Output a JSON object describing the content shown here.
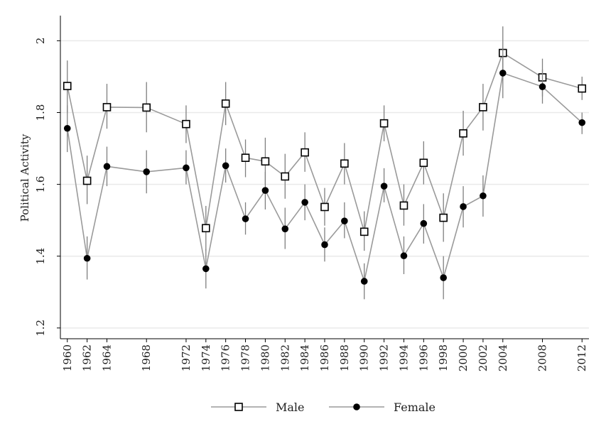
{
  "chart_data": {
    "type": "line",
    "title": "",
    "xlabel": "",
    "ylabel": "Political Activity",
    "ylim": [
      1.17,
      2.07
    ],
    "xlim": [
      1959.3,
      2012.7
    ],
    "yticks": [
      1.2,
      1.4,
      1.6,
      1.8,
      2.0
    ],
    "ytick_labels": [
      "1.2",
      "1.4",
      "1.6",
      "1.8",
      "2"
    ],
    "x": [
      1960,
      1962,
      1964,
      1968,
      1972,
      1974,
      1976,
      1978,
      1980,
      1982,
      1984,
      1986,
      1988,
      1990,
      1992,
      1994,
      1996,
      1998,
      2000,
      2002,
      2004,
      2008,
      2012
    ],
    "xtick_labels": [
      "1960",
      "1962",
      "1964",
      "1968",
      "1972",
      "1974",
      "1976",
      "1978",
      "1980",
      "1982",
      "1984",
      "1986",
      "1988",
      "1990",
      "1992",
      "1994",
      "1996",
      "1998",
      "2000",
      "2002",
      "2004",
      "2008",
      "2012"
    ],
    "grid": true,
    "legend_position": "bottom",
    "series": [
      {
        "name": "Male",
        "marker": "hollow-square",
        "values": [
          1.874,
          1.61,
          1.815,
          1.814,
          1.768,
          1.478,
          1.825,
          1.674,
          1.664,
          1.622,
          1.689,
          1.537,
          1.658,
          1.468,
          1.77,
          1.541,
          1.66,
          1.507,
          1.742,
          1.815,
          1.966,
          1.898,
          1.867
        ],
        "lower": [
          1.8,
          1.545,
          1.755,
          1.745,
          1.715,
          1.415,
          1.765,
          1.62,
          1.6,
          1.56,
          1.635,
          1.485,
          1.6,
          1.415,
          1.72,
          1.485,
          1.6,
          1.44,
          1.68,
          1.75,
          1.89,
          1.845,
          1.835
        ],
        "upper": [
          1.945,
          1.68,
          1.88,
          1.885,
          1.82,
          1.54,
          1.885,
          1.725,
          1.73,
          1.685,
          1.745,
          1.59,
          1.715,
          1.525,
          1.82,
          1.6,
          1.72,
          1.575,
          1.805,
          1.88,
          2.04,
          1.95,
          1.9
        ]
      },
      {
        "name": "Female",
        "marker": "filled-circle",
        "values": [
          1.756,
          1.394,
          1.65,
          1.635,
          1.646,
          1.365,
          1.652,
          1.504,
          1.583,
          1.476,
          1.55,
          1.432,
          1.498,
          1.33,
          1.595,
          1.401,
          1.491,
          1.34,
          1.538,
          1.568,
          1.91,
          1.872,
          1.772
        ],
        "lower": [
          1.69,
          1.335,
          1.595,
          1.575,
          1.6,
          1.31,
          1.605,
          1.46,
          1.53,
          1.42,
          1.5,
          1.385,
          1.45,
          1.28,
          1.55,
          1.35,
          1.435,
          1.28,
          1.48,
          1.51,
          1.84,
          1.825,
          1.74
        ],
        "upper": [
          1.82,
          1.455,
          1.705,
          1.695,
          1.695,
          1.42,
          1.7,
          1.55,
          1.635,
          1.535,
          1.6,
          1.48,
          1.55,
          1.38,
          1.645,
          1.455,
          1.545,
          1.4,
          1.595,
          1.625,
          1.98,
          1.92,
          1.8
        ]
      }
    ]
  },
  "colors": {
    "line": "#9a9a9a",
    "errorbar": "#7f7f7f",
    "marker": "#000000",
    "grid": "#eaeaea",
    "axis": "#000000",
    "background": "#ffffff"
  }
}
